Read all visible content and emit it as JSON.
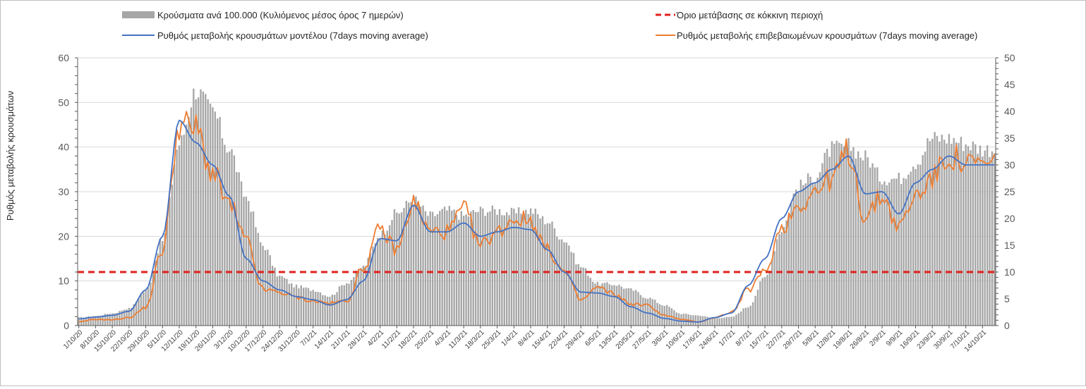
{
  "chart_data": {
    "type": "line",
    "legend": {
      "placement": "top",
      "items": [
        {
          "key": "bars",
          "label": "Κρούσματα ανά 100.000 (Κυλιόμενος μέσος όρος 7 ημερών)",
          "color": "#a6a6a6"
        },
        {
          "key": "threshold",
          "label": "Όριο μετάβασης  σε κόκκινη περιοχή",
          "color": "#e0201b"
        },
        {
          "key": "model",
          "label": "Ρυθμός μεταβολής κρουσμάτων μοντέλου (7days moving average)",
          "color": "#4472c4"
        },
        {
          "key": "confirmed",
          "label": "Ρυθμός μεταβολής επιβεβαιωμένων κρουσμάτων (7days moving average)",
          "color": "#ed7d31"
        }
      ]
    },
    "ylabel": "Ρυθμός μεταβολής κρουσμάτων",
    "y_left": {
      "min": 0,
      "max": 60,
      "ticks": [
        "0",
        "10",
        "20",
        "30",
        "40",
        "50",
        "60"
      ]
    },
    "y_right": {
      "min": 0,
      "max": 50,
      "ticks": [
        "0",
        "5",
        "10",
        "15",
        "20",
        "25",
        "30",
        "35",
        "40",
        "45",
        "50"
      ]
    },
    "grid": true,
    "x_tick_step_days": 7,
    "x_categories": [
      "1/10/20",
      "8/10/20",
      "15/10/20",
      "22/10/20",
      "29/10/20",
      "5/11/20",
      "12/11/20",
      "19/11/20",
      "26/11/20",
      "3/12/20",
      "10/12/20",
      "17/12/20",
      "24/12/20",
      "31/12/20",
      "7/1/21",
      "14/1/21",
      "21/1/21",
      "28/1/21",
      "4/2/21",
      "11/2/21",
      "18/2/21",
      "25/2/21",
      "4/3/21",
      "11/3/21",
      "18/3/21",
      "25/3/21",
      "1/4/21",
      "8/4/21",
      "15/4/21",
      "22/4/21",
      "29/4/21",
      "6/5/21",
      "13/5/21",
      "20/5/21",
      "27/5/21",
      "3/6/21",
      "10/6/21",
      "17/6/21",
      "24/6/21",
      "1/7/21",
      "8/7/21",
      "15/7/21",
      "22/7/21",
      "29/7/21",
      "5/8/21",
      "12/8/21",
      "19/8/21",
      "26/8/21",
      "2/9/21",
      "9/9/21",
      "16/9/21",
      "23/9/21",
      "30/9/21",
      "7/10/21",
      "14/10/21"
    ],
    "threshold_left_value": 12,
    "series": [
      {
        "name": "Κρούσματα ανά 100.000 (Κυλιόμενος μέσος όρος 7 ημερών)",
        "axis": "right",
        "kind": "bar",
        "daily_keypoints_weekly": [
          1.5,
          1.8,
          2.3,
          3.2,
          6.5,
          16,
          34,
          44,
          40,
          33,
          24,
          15,
          9.2,
          7.3,
          6.7,
          5.5,
          8,
          11,
          17,
          21,
          23.5,
          20.5,
          21.5,
          20.5,
          21.5,
          21.5,
          21,
          21.5,
          19.5,
          16,
          11,
          7.8,
          7.7,
          6.7,
          5.2,
          3.8,
          2.2,
          1.9,
          1.4,
          1.6,
          3.5,
          9,
          18,
          26,
          28,
          33,
          33.5,
          31.5,
          27.5,
          27.5,
          30.5,
          35,
          35,
          34,
          33
        ]
      },
      {
        "name": "Ρυθμός μεταβολής κρουσμάτων μοντέλου (7days moving average)",
        "axis": "left",
        "kind": "line",
        "values_weekly": [
          1.5,
          1.9,
          2.3,
          3.2,
          8,
          20,
          46,
          41,
          36,
          29,
          15,
          10,
          8,
          6.5,
          5.8,
          4.6,
          5.8,
          10,
          19.5,
          19,
          27,
          21,
          21,
          23,
          20,
          21,
          22,
          21.5,
          17,
          12,
          7.5,
          7.3,
          6.5,
          4.2,
          2.8,
          1.6,
          1,
          0.8,
          1.8,
          2.8,
          9,
          15,
          24,
          30,
          32,
          35,
          38,
          29.5,
          30,
          25,
          32,
          35,
          38,
          36,
          36
        ]
      },
      {
        "name": "Ρυθμός μεταβολής επιβεβαιωμένων κρουσμάτων (7days moving average)",
        "axis": "left",
        "kind": "line",
        "values_weekly": [
          0.8,
          1.4,
          1.3,
          1.8,
          4,
          17,
          45,
          44,
          34,
          27,
          19,
          8,
          7.5,
          6.3,
          5.5,
          5,
          5.5,
          13,
          21.5,
          17,
          27.5,
          21,
          21,
          26,
          18,
          21,
          24,
          23.5,
          17,
          12,
          5.7,
          8.5,
          7,
          4.8,
          4.5,
          2.3,
          1.4,
          0.8,
          1.8,
          3,
          8,
          12,
          22,
          27,
          30,
          33,
          39,
          24,
          29,
          22,
          29,
          33,
          38,
          36,
          36
        ]
      }
    ]
  }
}
